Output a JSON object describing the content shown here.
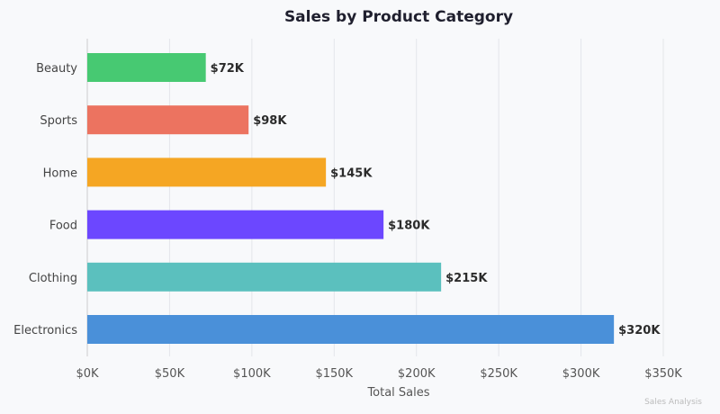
{
  "chart_data": {
    "type": "bar",
    "orientation": "horizontal",
    "title": "Sales by Product Category",
    "xlabel": "Total Sales",
    "ylabel": "",
    "xlim": [
      0,
      350
    ],
    "categories": [
      "Electronics",
      "Clothing",
      "Food",
      "Home",
      "Sports",
      "Beauty"
    ],
    "values": [
      320,
      215,
      180,
      145,
      98,
      72
    ],
    "value_labels": [
      "$320K",
      "$215K",
      "$180K",
      "$145K",
      "$98K",
      "$72K"
    ],
    "colors": [
      "#4a90d9",
      "#5bc0be",
      "#6c47ff",
      "#f5a623",
      "#ec7360",
      "#47c972"
    ],
    "x_ticks": [
      0,
      50,
      100,
      150,
      200,
      250,
      300,
      350
    ],
    "x_tick_labels": [
      "$0K",
      "$50K",
      "$100K",
      "$150K",
      "$200K",
      "$250K",
      "$300K",
      "$350K"
    ],
    "grid": true,
    "footer_note": "Sales Analysis"
  }
}
